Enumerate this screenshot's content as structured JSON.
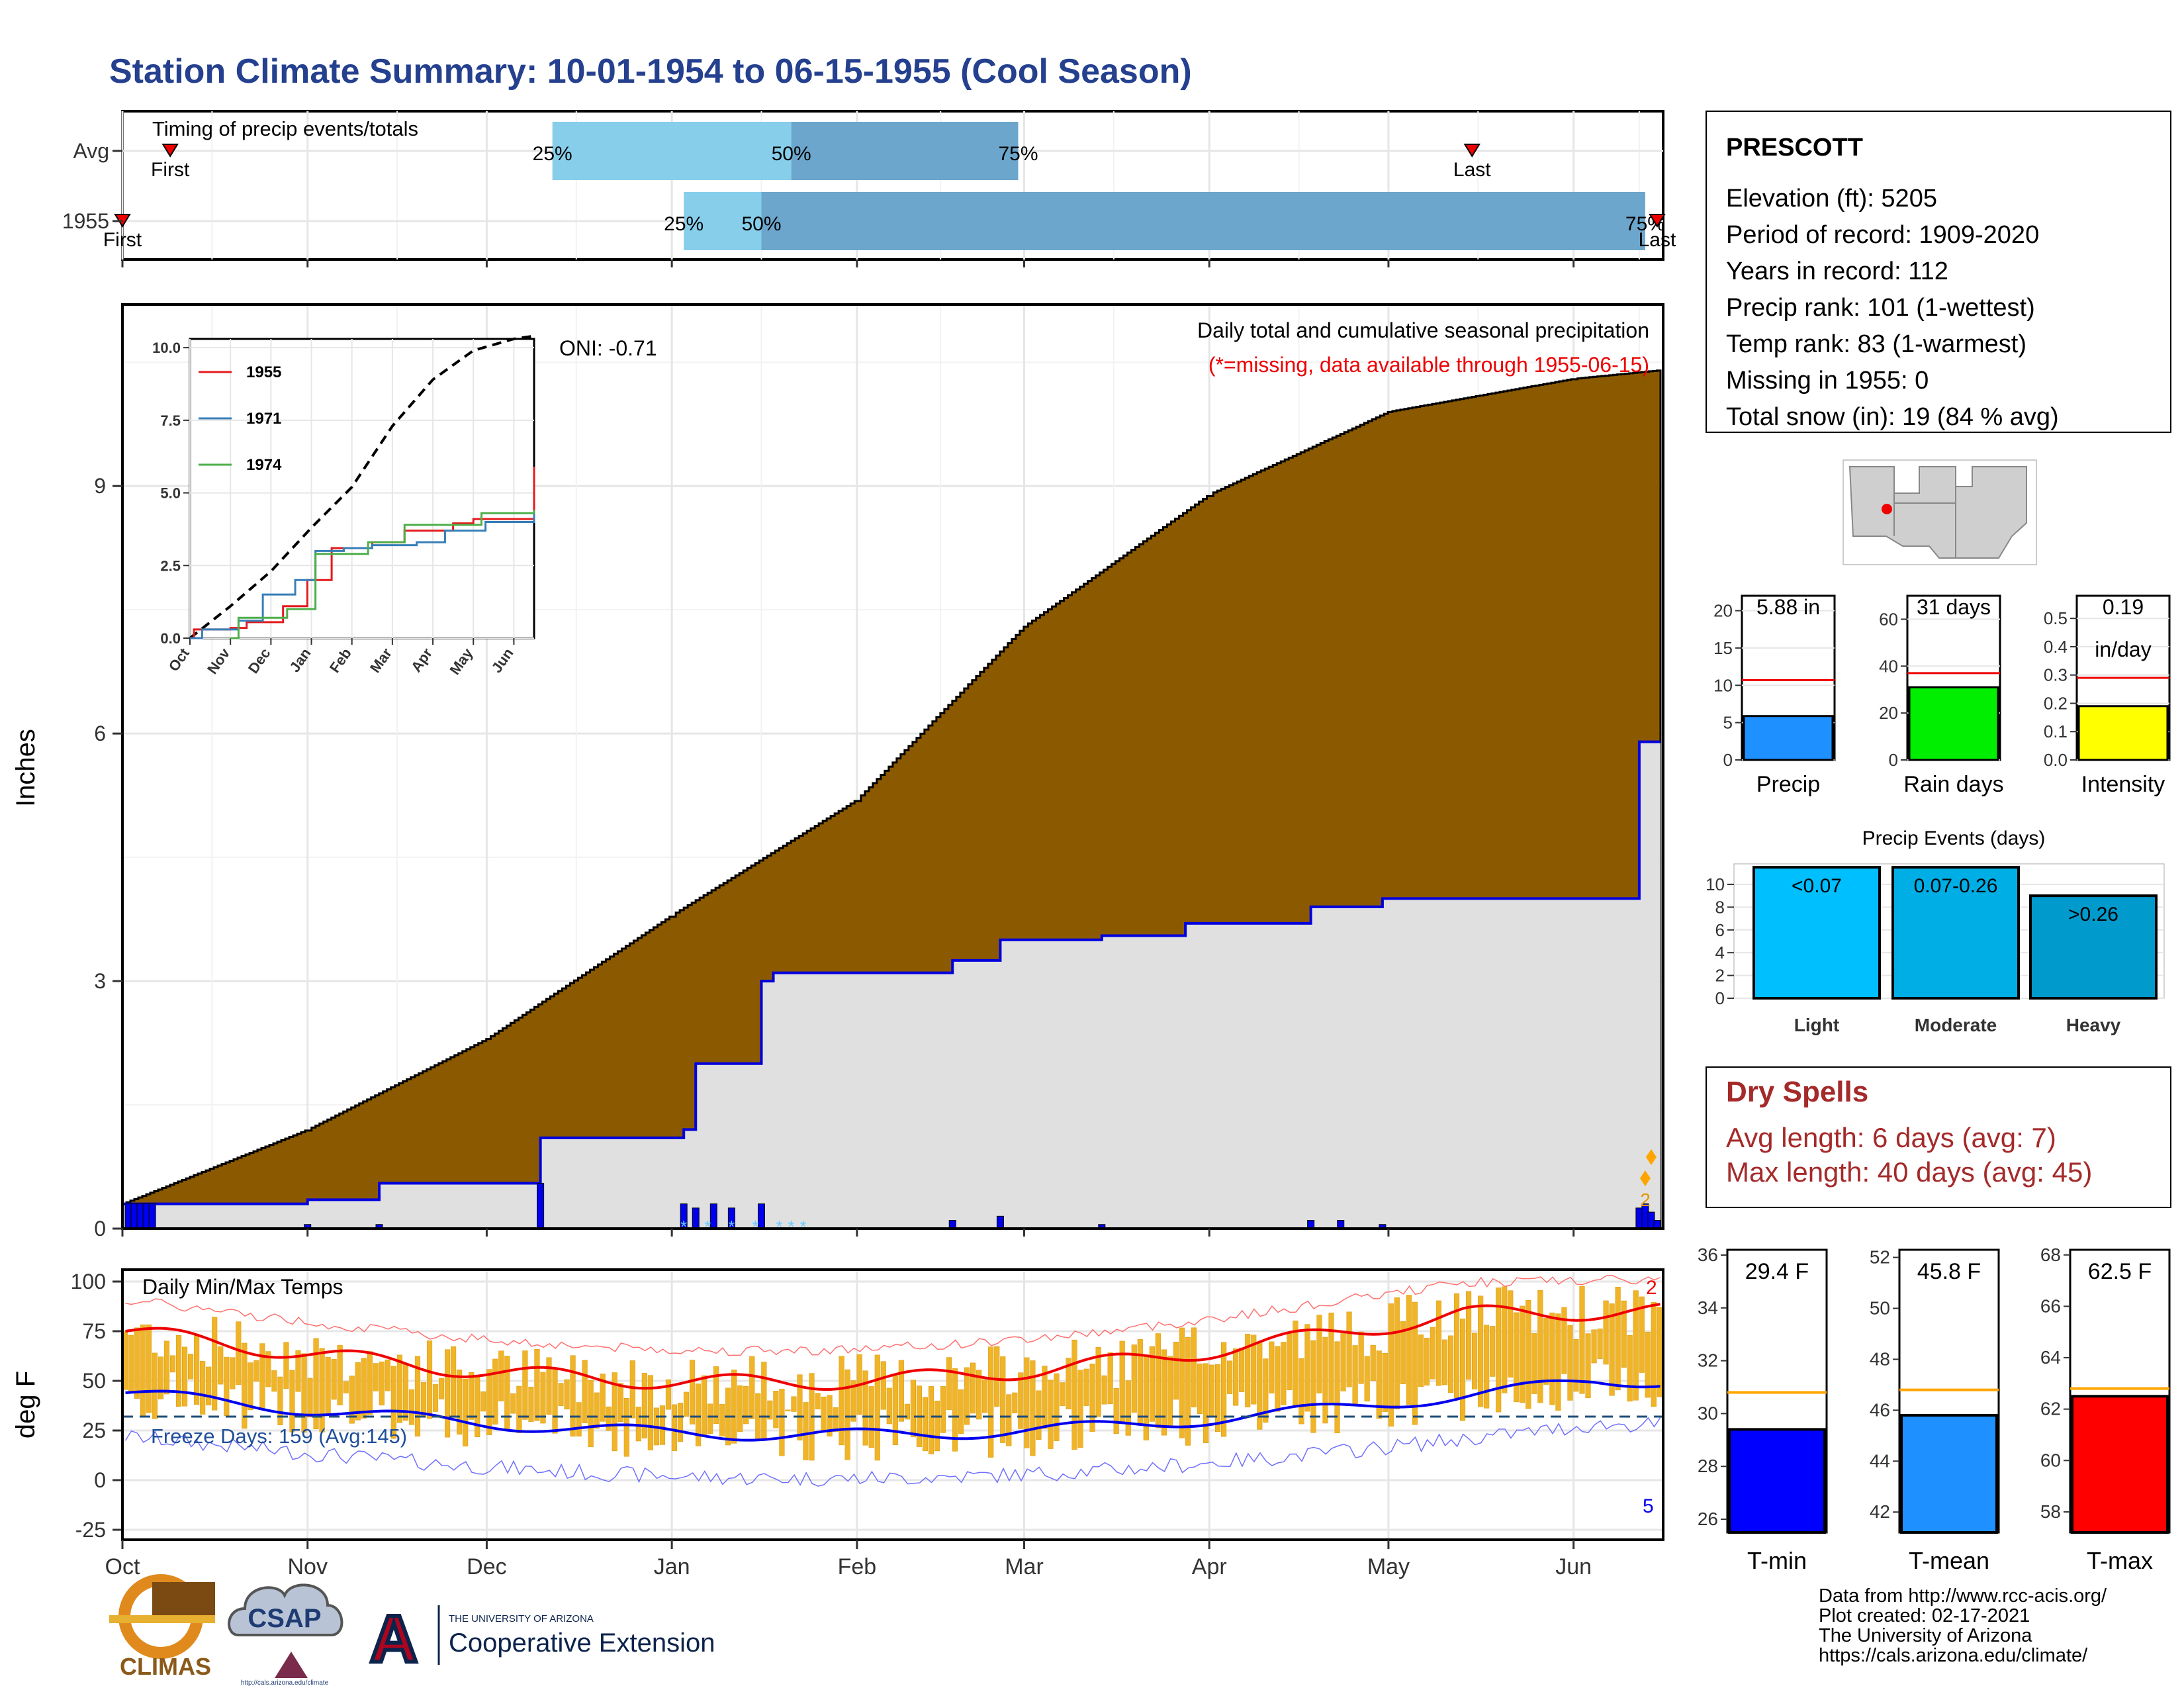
{
  "title": "Station Climate Summary: 10-01-1954 to 06-15-1955 (Cool Season)",
  "months": [
    "Oct",
    "Nov",
    "Dec",
    "Jan",
    "Feb",
    "Mar",
    "Apr",
    "May",
    "Jun"
  ],
  "timing": {
    "label": "Timing of precip events/totals",
    "rows": [
      {
        "label": "Avg",
        "first": "First",
        "last": "Last",
        "first_date": "1954-10-09",
        "last_date": "1955-05-15",
        "p25_label": "25%",
        "p50_label": "50%",
        "p75_label": "75%",
        "p25": "1954-12-12",
        "p50": "1955-01-21",
        "p75": "1955-02-28"
      },
      {
        "label": "1955",
        "first": "First",
        "last": "Last",
        "first_date": "1954-10-01",
        "last_date": "1955-06-15",
        "p25_label": "25%",
        "p50_label": "50%",
        "p75_label": "75%",
        "p25": "1955-01-03",
        "p50": "1955-01-16",
        "p75": "1955-06-13"
      }
    ]
  },
  "precip_panel": {
    "ylabel": "Inches",
    "yticks": [
      0,
      3,
      6,
      9
    ],
    "ymax": 11.2,
    "title": "Daily total and cumulative seasonal precipitation",
    "subtitle": "(*=missing, data available through 1955-06-15)",
    "oni": "ONI: -0.71",
    "note_count": "2",
    "colors": {
      "avg_fill": "#8b5a00",
      "obs_fill": "#e0e0e0",
      "obs_line": "#0000dd",
      "daily_bar": "#0000ee"
    }
  },
  "inset": {
    "xticks": [
      "Oct",
      "Nov",
      "Dec",
      "Jan",
      "Feb",
      "Mar",
      "Apr",
      "May",
      "Jun"
    ],
    "yticks": [
      "0.0",
      "2.5",
      "5.0",
      "7.5",
      "10.0"
    ],
    "legend": [
      {
        "name": "1955",
        "color": "#e41a1c"
      },
      {
        "name": "1971",
        "color": "#377eb8"
      },
      {
        "name": "1974",
        "color": "#4daf4a"
      }
    ]
  },
  "temp_panel": {
    "ylabel": "deg F",
    "title": "Daily Min/Max Temps",
    "yticks": [
      -25,
      0,
      25,
      50,
      75,
      100
    ],
    "freeze_label": "Freeze Days: 159 (Avg:145)",
    "freeze_line": 32,
    "count_high": "2",
    "count_low": "5"
  },
  "station": {
    "name": "PRESCOTT",
    "lines": [
      "Elevation (ft): 5205",
      "Period of record: 1909-2020",
      "Years in record: 112",
      "Precip rank: 101 (1-wettest)",
      "Temp rank: 83 (1-warmest)",
      "Missing in 1955: 0",
      "Total snow (in): 19 (84 % avg)"
    ]
  },
  "gauges": [
    {
      "label": "Precip",
      "value_label": "5.88 in",
      "value": 5.88,
      "avg": 10.7,
      "max": 22,
      "ticks": [
        0,
        5,
        10,
        15,
        20
      ],
      "color": "#1e90ff"
    },
    {
      "label": "Rain days",
      "value_label": "31 days",
      "value": 31,
      "avg": 37,
      "max": 70,
      "ticks": [
        0,
        20,
        40,
        60
      ],
      "color": "#00ee00"
    },
    {
      "label": "Intensity",
      "value_label": "0.19",
      "value_label2": "in/day",
      "value": 0.19,
      "avg": 0.29,
      "max": 0.58,
      "ticks": [
        "0.0",
        "0.1",
        "0.2",
        "0.3",
        "0.4",
        "0.5"
      ],
      "color": "#ffff00"
    }
  ],
  "events": {
    "title": "Precip Events (days)",
    "yticks": [
      0,
      2,
      4,
      6,
      8,
      10
    ],
    "bars": [
      {
        "category": "Light",
        "label": "<0.07",
        "value": 11.5,
        "color": "#00bfff"
      },
      {
        "category": "Moderate",
        "label": "0.07-0.26",
        "value": 11.5,
        "color": "#00aee6"
      },
      {
        "category": "Heavy",
        "label": ">0.26",
        "value": 9,
        "color": "#009acd"
      }
    ]
  },
  "dry_spells": {
    "title": "Dry Spells",
    "avg": "Avg length: 6 days (avg: 7)",
    "max": "Max length: 40 days (avg: 45)"
  },
  "temp_gauges": [
    {
      "label": "T-min",
      "value_label": "29.4 F",
      "value": 29.4,
      "avg": 30.8,
      "min": 25.5,
      "max": 36.2,
      "ticks": [
        26,
        28,
        30,
        32,
        34,
        36
      ],
      "color": "#0000ff"
    },
    {
      "label": "T-mean",
      "value_label": "45.8 F",
      "value": 45.8,
      "avg": 46.8,
      "min": 41.2,
      "max": 52.3,
      "ticks": [
        42,
        44,
        46,
        48,
        50,
        52
      ],
      "color": "#1e90ff"
    },
    {
      "label": "T-max",
      "value_label": "62.5 F",
      "value": 62.5,
      "avg": 62.8,
      "min": 57.2,
      "max": 68.2,
      "ticks": [
        58,
        60,
        62,
        64,
        66,
        68
      ],
      "color": "#ff0000"
    }
  ],
  "footer": {
    "lines": [
      "Data from http://www.rcc-acis.org/",
      "Plot created: 02-17-2021",
      "The University of Arizona",
      "https://cals.arizona.edu/climate/"
    ],
    "logo1": "CLIMAS",
    "logo2": "CSAP",
    "logo2_url": "http://cals.arizona.edu/climate",
    "logo3_top": "THE UNIVERSITY OF ARIZONA",
    "logo3_main": "Cooperative Extension"
  },
  "chart_data": {
    "type": "area",
    "title": "Daily total and cumulative seasonal precipitation",
    "ylabel": "Inches",
    "ylim": [
      0,
      11.2
    ],
    "series": [
      {
        "name": "Avg",
        "x": [
          "1954-10-01",
          "1954-11-01",
          "1954-12-01",
          "1955-01-01",
          "1955-02-01",
          "1955-03-01",
          "1955-04-01",
          "1955-05-01",
          "1955-06-01",
          "1955-06-15"
        ],
        "values": [
          0.3,
          1.2,
          2.3,
          3.8,
          5.2,
          7.3,
          8.9,
          9.9,
          10.3,
          10.4
        ]
      },
      {
        "name": "1955",
        "x": [
          "1954-10-01",
          "1954-11-01",
          "1954-11-13",
          "1954-12-10",
          "1955-01-03",
          "1955-01-05",
          "1955-01-16",
          "1955-01-18",
          "1955-02-17",
          "1955-02-25",
          "1955-03-14",
          "1955-03-28",
          "1955-04-18",
          "1955-04-30",
          "1955-06-12",
          "1955-06-15"
        ],
        "values": [
          0.3,
          0.35,
          0.55,
          1.1,
          1.2,
          2.0,
          3.0,
          3.1,
          3.25,
          3.5,
          3.55,
          3.7,
          3.9,
          4.0,
          5.9,
          5.9
        ]
      }
    ]
  }
}
